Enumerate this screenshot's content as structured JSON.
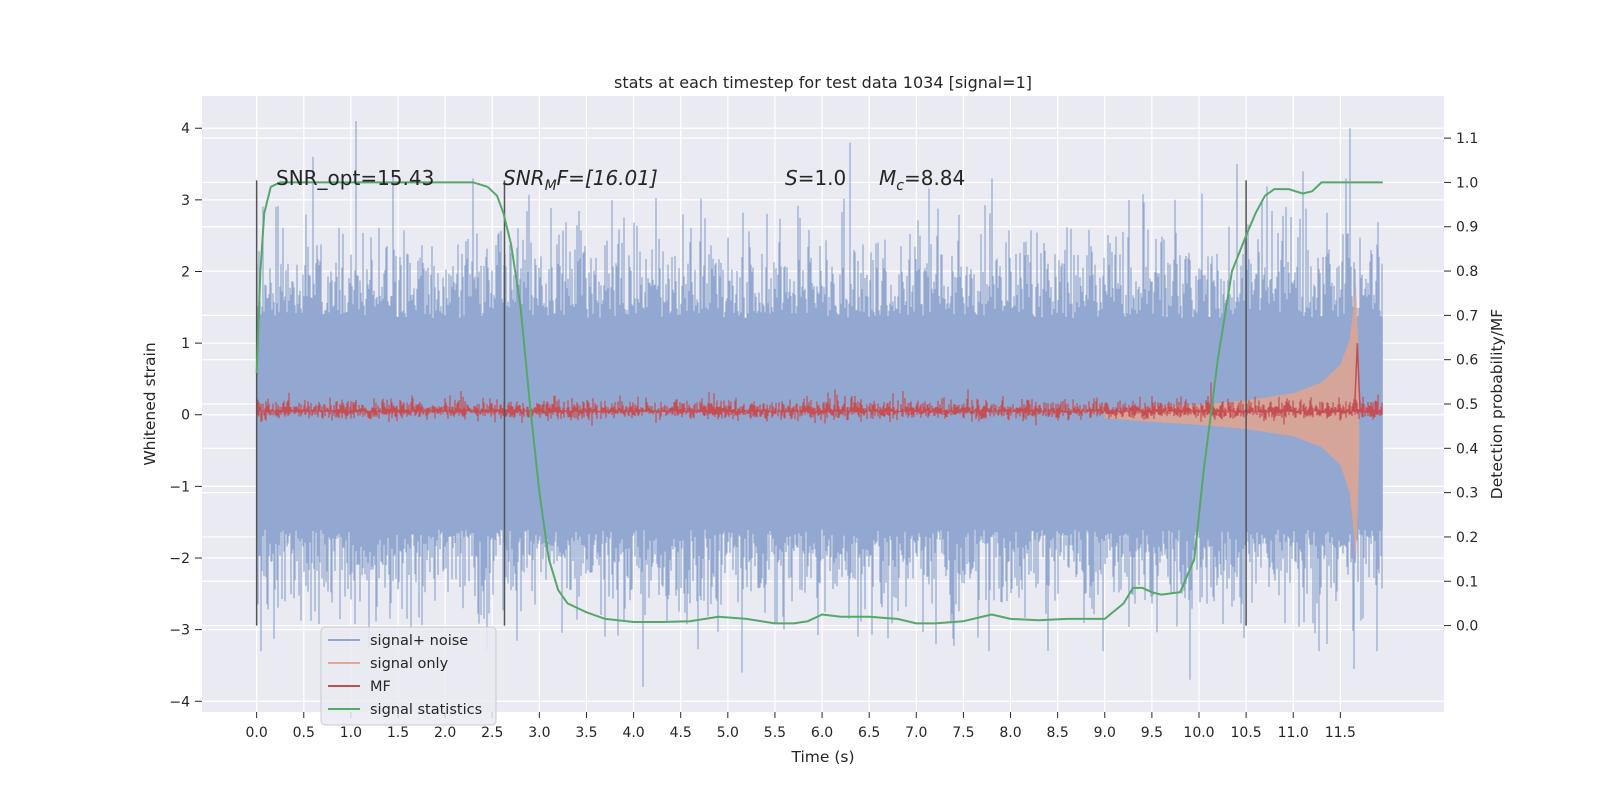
{
  "chart_data": {
    "type": "line",
    "title": "stats at each timestep for test data 1034 [signal=1]",
    "xlabel": "Time (s)",
    "ylabel_left": "Whitened strain",
    "ylabel_right": "Detection probability/MF",
    "xlim": [
      -0.58,
      12.6
    ],
    "ylim_left": [
      -4.15,
      4.45
    ],
    "ylim_right": [
      -0.195,
      1.195
    ],
    "x_ticks": [
      "0.0",
      "0.5",
      "1.0",
      "1.5",
      "2.0",
      "2.5",
      "3.0",
      "3.5",
      "4.0",
      "4.5",
      "5.0",
      "5.5",
      "6.0",
      "6.5",
      "7.0",
      "7.5",
      "8.0",
      "8.5",
      "9.0",
      "9.5",
      "10.0",
      "10.5",
      "11.0",
      "11.5"
    ],
    "y_ticks_left": [
      "4",
      "3",
      "2",
      "1",
      "0",
      "−1",
      "−2",
      "−3",
      "−4"
    ],
    "y_ticks_right": [
      "1.1",
      "1.0",
      "0.9",
      "0.8",
      "0.7",
      "0.6",
      "0.5",
      "0.4",
      "0.3",
      "0.2",
      "0.1",
      "0.0"
    ],
    "grid": true,
    "legend_position": "lower-left",
    "annotations": {
      "snr_opt": "SNR_opt=15.43",
      "snr_mf_sym": "SNR",
      "snr_mf_sub": "M",
      "snr_mf_rest": "F=[16.01]",
      "s_sym": "S",
      "s_rest": "=1.0",
      "mc_sym": "M",
      "mc_sub": "c",
      "mc_rest": "=8.84"
    },
    "vertical_markers": [
      0.0,
      2.63,
      10.5
    ],
    "noise": {
      "x_range": [
        0.0,
        11.95
      ],
      "typical_range": [
        -1.9,
        2.0
      ],
      "extremes": [
        -3.8,
        4.1
      ],
      "spikes": [
        [
          0.2,
          2.9
        ],
        [
          0.6,
          3.6
        ],
        [
          1.05,
          4.1
        ],
        [
          1.45,
          3.4
        ],
        [
          2.3,
          3.3
        ],
        [
          3.7,
          -3.1
        ],
        [
          4.1,
          -3.8
        ],
        [
          5.15,
          -3.6
        ],
        [
          6.3,
          3.8
        ],
        [
          7.8,
          3.3
        ],
        [
          8.4,
          -3.3
        ],
        [
          9.9,
          -3.7
        ],
        [
          10.4,
          3.5
        ],
        [
          11.1,
          3.4
        ],
        [
          11.6,
          4.0
        ],
        [
          11.65,
          -3.55
        ]
      ]
    },
    "signal_envelope": {
      "t": [
        9.0,
        9.5,
        10.0,
        10.5,
        11.0,
        11.3,
        11.5,
        11.6,
        11.65,
        11.68,
        11.7
      ],
      "amp": [
        0.05,
        0.1,
        0.14,
        0.2,
        0.3,
        0.45,
        0.7,
        1.05,
        1.6,
        2.0,
        0.6
      ],
      "amp_neg": [
        0.05,
        0.1,
        0.14,
        0.2,
        0.3,
        0.45,
        0.7,
        1.1,
        1.7,
        2.4,
        0.6
      ]
    },
    "mf": {
      "x_range": [
        0.0,
        11.95
      ],
      "baseline": 0.05,
      "band": 0.17,
      "peak": {
        "x": 11.68,
        "y": 1.0
      }
    },
    "series": [
      {
        "name": "signal+ noise",
        "color": "#92a8d1",
        "axis": "left"
      },
      {
        "name": "signal only",
        "color": "#e6a48c",
        "axis": "left"
      },
      {
        "name": "MF",
        "color": "#c44e52",
        "axis": "left"
      },
      {
        "name": "signal statistics",
        "color": "#55a868",
        "axis": "right",
        "x": [
          0.0,
          0.04,
          0.08,
          0.15,
          0.25,
          0.5,
          1.0,
          1.5,
          2.0,
          2.3,
          2.45,
          2.55,
          2.62,
          2.7,
          2.8,
          2.9,
          3.0,
          3.1,
          3.2,
          3.3,
          3.5,
          3.7,
          4.0,
          4.3,
          4.6,
          4.9,
          5.2,
          5.5,
          5.7,
          5.85,
          6.0,
          6.2,
          6.5,
          6.8,
          7.0,
          7.2,
          7.5,
          7.8,
          8.0,
          8.3,
          8.6,
          9.0,
          9.2,
          9.3,
          9.4,
          9.5,
          9.6,
          9.8,
          9.95,
          10.05,
          10.2,
          10.35,
          10.5,
          10.6,
          10.7,
          10.8,
          10.95,
          11.1,
          11.2,
          11.3,
          11.5,
          11.8,
          11.95
        ],
        "y": [
          0.57,
          0.8,
          0.93,
          0.99,
          1.0,
          1.0,
          1.0,
          1.0,
          1.0,
          1.0,
          0.99,
          0.97,
          0.93,
          0.86,
          0.72,
          0.5,
          0.3,
          0.15,
          0.08,
          0.05,
          0.03,
          0.015,
          0.008,
          0.008,
          0.01,
          0.02,
          0.015,
          0.005,
          0.005,
          0.01,
          0.025,
          0.02,
          0.02,
          0.015,
          0.005,
          0.005,
          0.01,
          0.025,
          0.015,
          0.012,
          0.015,
          0.015,
          0.05,
          0.085,
          0.085,
          0.075,
          0.07,
          0.075,
          0.15,
          0.35,
          0.6,
          0.8,
          0.88,
          0.93,
          0.97,
          0.985,
          0.985,
          0.975,
          0.98,
          1.0,
          1.0,
          1.0,
          1.0
        ]
      }
    ]
  }
}
